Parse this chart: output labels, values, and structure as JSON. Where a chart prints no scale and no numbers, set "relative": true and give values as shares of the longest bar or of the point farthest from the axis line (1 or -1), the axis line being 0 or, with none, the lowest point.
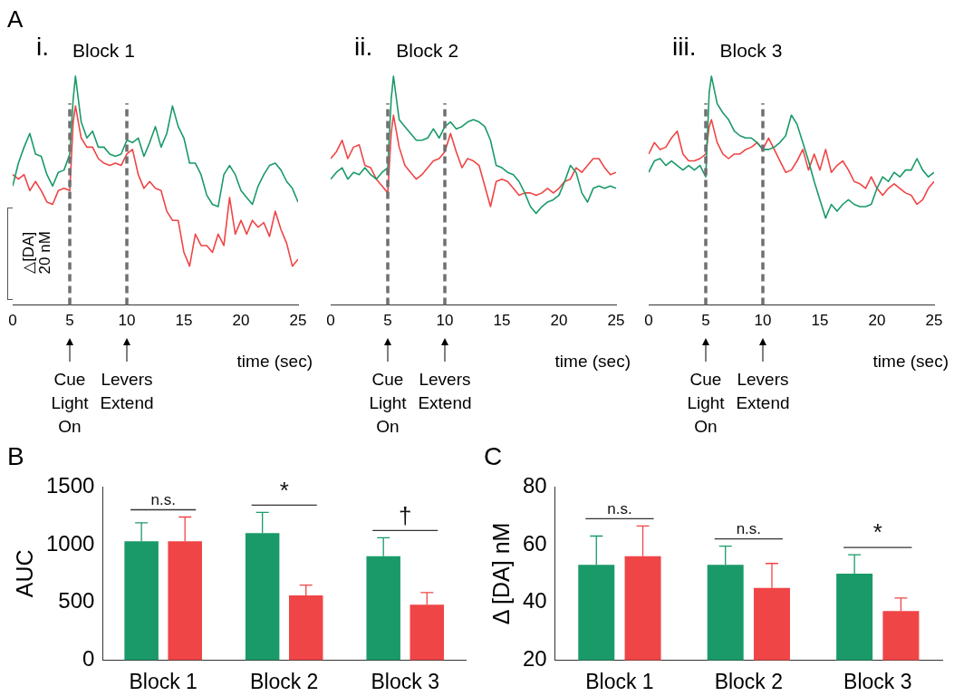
{
  "chart_data": [
    {
      "type": "line",
      "title": "Block 1",
      "xlabel": "time (sec)",
      "ylabel": "△[DA] 20 nM",
      "relative": true,
      "marker": "none",
      "line_style": "solid",
      "xlim": [
        0,
        25
      ],
      "xticks": [
        0,
        5,
        10,
        15,
        20,
        25
      ],
      "x": [
        0,
        0.5,
        1,
        1.5,
        2,
        2.5,
        3,
        3.5,
        4,
        4.5,
        5,
        5.3,
        5.5,
        6,
        6.5,
        7,
        7.5,
        8,
        8.5,
        9,
        9.5,
        10,
        10.5,
        11,
        11.5,
        12,
        12.5,
        13,
        13.5,
        14,
        14.5,
        15,
        15.5,
        16,
        16.5,
        17,
        17.5,
        18,
        18.5,
        19,
        19.5,
        20,
        20.5,
        21,
        21.5,
        22,
        22.5,
        23,
        23.5,
        24,
        24.5,
        25
      ],
      "series": [
        {
          "color": "#1a9a68",
          "values": [
            0.52,
            0.62,
            0.69,
            0.75,
            0.66,
            0.65,
            0.57,
            0.52,
            0.58,
            0.59,
            0.66,
            0.9,
            1,
            0.8,
            0.73,
            0.76,
            0.69,
            0.69,
            0.66,
            0.65,
            0.66,
            0.72,
            0.71,
            0.73,
            0.65,
            0.71,
            0.78,
            0.69,
            0.75,
            0.87,
            0.78,
            0.73,
            0.62,
            0.62,
            0.57,
            0.48,
            0.44,
            0.43,
            0.57,
            0.61,
            0.57,
            0.5,
            0.47,
            0.44,
            0.52,
            0.57,
            0.61,
            0.62,
            0.59,
            0.54,
            0.51,
            0.45
          ]
        },
        {
          "color": "#ef4546",
          "values": [
            0.57,
            0.55,
            0.57,
            0.5,
            0.54,
            0.5,
            0.45,
            0.44,
            0.5,
            0.51,
            0.5,
            0.8,
            0.87,
            0.73,
            0.69,
            0.69,
            0.64,
            0.62,
            0.61,
            0.62,
            0.61,
            0.66,
            0.68,
            0.57,
            0.51,
            0.54,
            0.51,
            0.5,
            0.41,
            0.37,
            0.37,
            0.23,
            0.17,
            0.31,
            0.26,
            0.26,
            0.23,
            0.31,
            0.26,
            0.47,
            0.31,
            0.37,
            0.31,
            0.37,
            0.34,
            0.36,
            0.3,
            0.41,
            0.33,
            0.27,
            0.17,
            0.2
          ]
        }
      ],
      "ref_lines": [
        {
          "axis": "x",
          "value": 5,
          "color": "#707070",
          "line_style": "dashed"
        },
        {
          "axis": "x",
          "value": 10,
          "color": "#707070",
          "line_style": "dashed"
        }
      ],
      "annotations": [
        "A",
        "i.",
        "Cue Light On",
        "Levers Extend"
      ]
    },
    {
      "type": "line",
      "title": "Block 2",
      "xlabel": "time (sec)",
      "relative": true,
      "marker": "none",
      "line_style": "solid",
      "xlim": [
        0,
        25
      ],
      "xticks": [
        0,
        5,
        10,
        15,
        20,
        25
      ],
      "x": [
        0,
        0.5,
        1,
        1.5,
        2,
        2.5,
        3,
        3.5,
        4,
        4.5,
        5,
        5.3,
        5.5,
        6,
        6.5,
        7,
        7.5,
        8,
        8.5,
        9,
        9.5,
        10,
        10.5,
        11,
        11.5,
        12,
        12.5,
        13,
        13.5,
        14,
        14.5,
        15,
        15.5,
        16,
        16.5,
        17,
        17.5,
        18,
        18.5,
        19,
        19.5,
        20,
        20.5,
        21,
        21.5,
        22,
        22.5,
        23,
        23.5,
        24,
        24.5,
        25
      ],
      "series": [
        {
          "color": "#1a9a68",
          "values": [
            0.55,
            0.58,
            0.6,
            0.55,
            0.58,
            0.57,
            0.6,
            0.57,
            0.55,
            0.58,
            0.6,
            0.9,
            1,
            0.81,
            0.78,
            0.75,
            0.72,
            0.72,
            0.73,
            0.77,
            0.73,
            0.78,
            0.8,
            0.77,
            0.78,
            0.8,
            0.81,
            0.8,
            0.78,
            0.72,
            0.61,
            0.6,
            0.58,
            0.57,
            0.54,
            0.49,
            0.43,
            0.4,
            0.43,
            0.45,
            0.46,
            0.48,
            0.54,
            0.61,
            0.58,
            0.49,
            0.45,
            0.51,
            0.52,
            0.51,
            0.52,
            0.51
          ]
        },
        {
          "color": "#ef4546",
          "values": [
            0.64,
            0.67,
            0.72,
            0.64,
            0.69,
            0.7,
            0.61,
            0.6,
            0.55,
            0.52,
            0.49,
            0.75,
            0.83,
            0.69,
            0.61,
            0.58,
            0.55,
            0.57,
            0.6,
            0.63,
            0.64,
            0.67,
            0.75,
            0.67,
            0.6,
            0.64,
            0.63,
            0.61,
            0.52,
            0.43,
            0.54,
            0.55,
            0.54,
            0.51,
            0.48,
            0.49,
            0.49,
            0.48,
            0.49,
            0.51,
            0.49,
            0.51,
            0.54,
            0.55,
            0.6,
            0.58,
            0.61,
            0.64,
            0.64,
            0.6,
            0.57,
            0.58
          ]
        }
      ],
      "ref_lines": [
        {
          "axis": "x",
          "value": 5,
          "color": "#707070",
          "line_style": "dashed"
        },
        {
          "axis": "x",
          "value": 10,
          "color": "#707070",
          "line_style": "dashed"
        }
      ],
      "annotations": [
        "ii.",
        "Cue Light On",
        "Levers Extend"
      ]
    },
    {
      "type": "line",
      "title": "Block 3",
      "xlabel": "time (sec)",
      "relative": true,
      "marker": "none",
      "line_style": "solid",
      "xlim": [
        0,
        25
      ],
      "xticks": [
        0,
        5,
        10,
        15,
        20,
        25
      ],
      "x": [
        0,
        0.5,
        1,
        1.5,
        2,
        2.5,
        3,
        3.5,
        4,
        4.5,
        5,
        5.3,
        5.5,
        6,
        6.5,
        7,
        7.5,
        8,
        8.5,
        9,
        9.5,
        10,
        10.5,
        11,
        11.5,
        12,
        12.5,
        13,
        13.5,
        14,
        14.5,
        15,
        15.5,
        16,
        16.5,
        17,
        17.5,
        18,
        18.5,
        19,
        19.5,
        20,
        20.5,
        21,
        21.5,
        22,
        22.5,
        23,
        23.5,
        24,
        24.5,
        25
      ],
      "series": [
        {
          "color": "#1a9a68",
          "values": [
            0.58,
            0.63,
            0.64,
            0.61,
            0.63,
            0.61,
            0.59,
            0.61,
            0.59,
            0.61,
            0.56,
            0.93,
            1,
            0.88,
            0.84,
            0.81,
            0.76,
            0.74,
            0.73,
            0.73,
            0.71,
            0.68,
            0.68,
            0.69,
            0.71,
            0.74,
            0.83,
            0.79,
            0.71,
            0.63,
            0.54,
            0.46,
            0.38,
            0.44,
            0.41,
            0.44,
            0.46,
            0.44,
            0.43,
            0.43,
            0.44,
            0.51,
            0.56,
            0.54,
            0.58,
            0.56,
            0.59,
            0.59,
            0.64,
            0.59,
            0.56,
            0.58
          ]
        },
        {
          "color": "#ef4546",
          "values": [
            0.66,
            0.71,
            0.68,
            0.69,
            0.73,
            0.76,
            0.66,
            0.63,
            0.63,
            0.64,
            0.66,
            0.78,
            0.81,
            0.71,
            0.66,
            0.64,
            0.66,
            0.66,
            0.68,
            0.69,
            0.71,
            0.68,
            0.73,
            0.68,
            0.63,
            0.58,
            0.59,
            0.63,
            0.68,
            0.59,
            0.66,
            0.59,
            0.68,
            0.58,
            0.61,
            0.63,
            0.59,
            0.54,
            0.53,
            0.51,
            0.56,
            0.51,
            0.48,
            0.51,
            0.53,
            0.51,
            0.49,
            0.48,
            0.44,
            0.46,
            0.51,
            0.54
          ]
        }
      ],
      "ref_lines": [
        {
          "axis": "x",
          "value": 5,
          "color": "#707070",
          "line_style": "dashed"
        },
        {
          "axis": "x",
          "value": 10,
          "color": "#707070",
          "line_style": "dashed"
        }
      ],
      "annotations": [
        "iii.",
        "Cue Light On",
        "Levers Extend"
      ]
    },
    {
      "type": "bar",
      "ylabel": "AUC",
      "categories": [
        "Block 1",
        "Block 2",
        "Block 3"
      ],
      "ylim": [
        0,
        1500
      ],
      "yticks": [
        0,
        500,
        1000,
        1500
      ],
      "series": [
        {
          "color": "#1a9a68",
          "values": [
            1030,
            1100,
            900
          ],
          "errors": [
            [
              1030,
              1190
            ],
            [
              1100,
              1280
            ],
            [
              900,
              1060
            ]
          ]
        },
        {
          "color": "#ef4546",
          "values": [
            1030,
            560,
            480
          ],
          "errors": [
            [
              1030,
              1240
            ],
            [
              560,
              650
            ],
            [
              480,
              585
            ]
          ]
        }
      ],
      "annotations": [
        "B",
        "n.s.",
        "*",
        "†"
      ]
    },
    {
      "type": "bar",
      "ylabel": "Δ [DA] nM",
      "categories": [
        "Block 1",
        "Block 2",
        "Block 3"
      ],
      "ylim": [
        20,
        80
      ],
      "yticks": [
        20,
        40,
        60,
        80
      ],
      "series": [
        {
          "color": "#1a9a68",
          "values": [
            53,
            53,
            50
          ],
          "errors": [
            [
              53,
              63
            ],
            [
              53,
              59.5
            ],
            [
              50,
              56.5
            ]
          ]
        },
        {
          "color": "#ef4546",
          "values": [
            56,
            45,
            37
          ],
          "errors": [
            [
              56,
              66.5
            ],
            [
              45,
              53.5
            ],
            [
              37,
              41.5
            ]
          ]
        }
      ],
      "annotations": [
        "C",
        "n.s.",
        "n.s.",
        "*"
      ]
    }
  ]
}
